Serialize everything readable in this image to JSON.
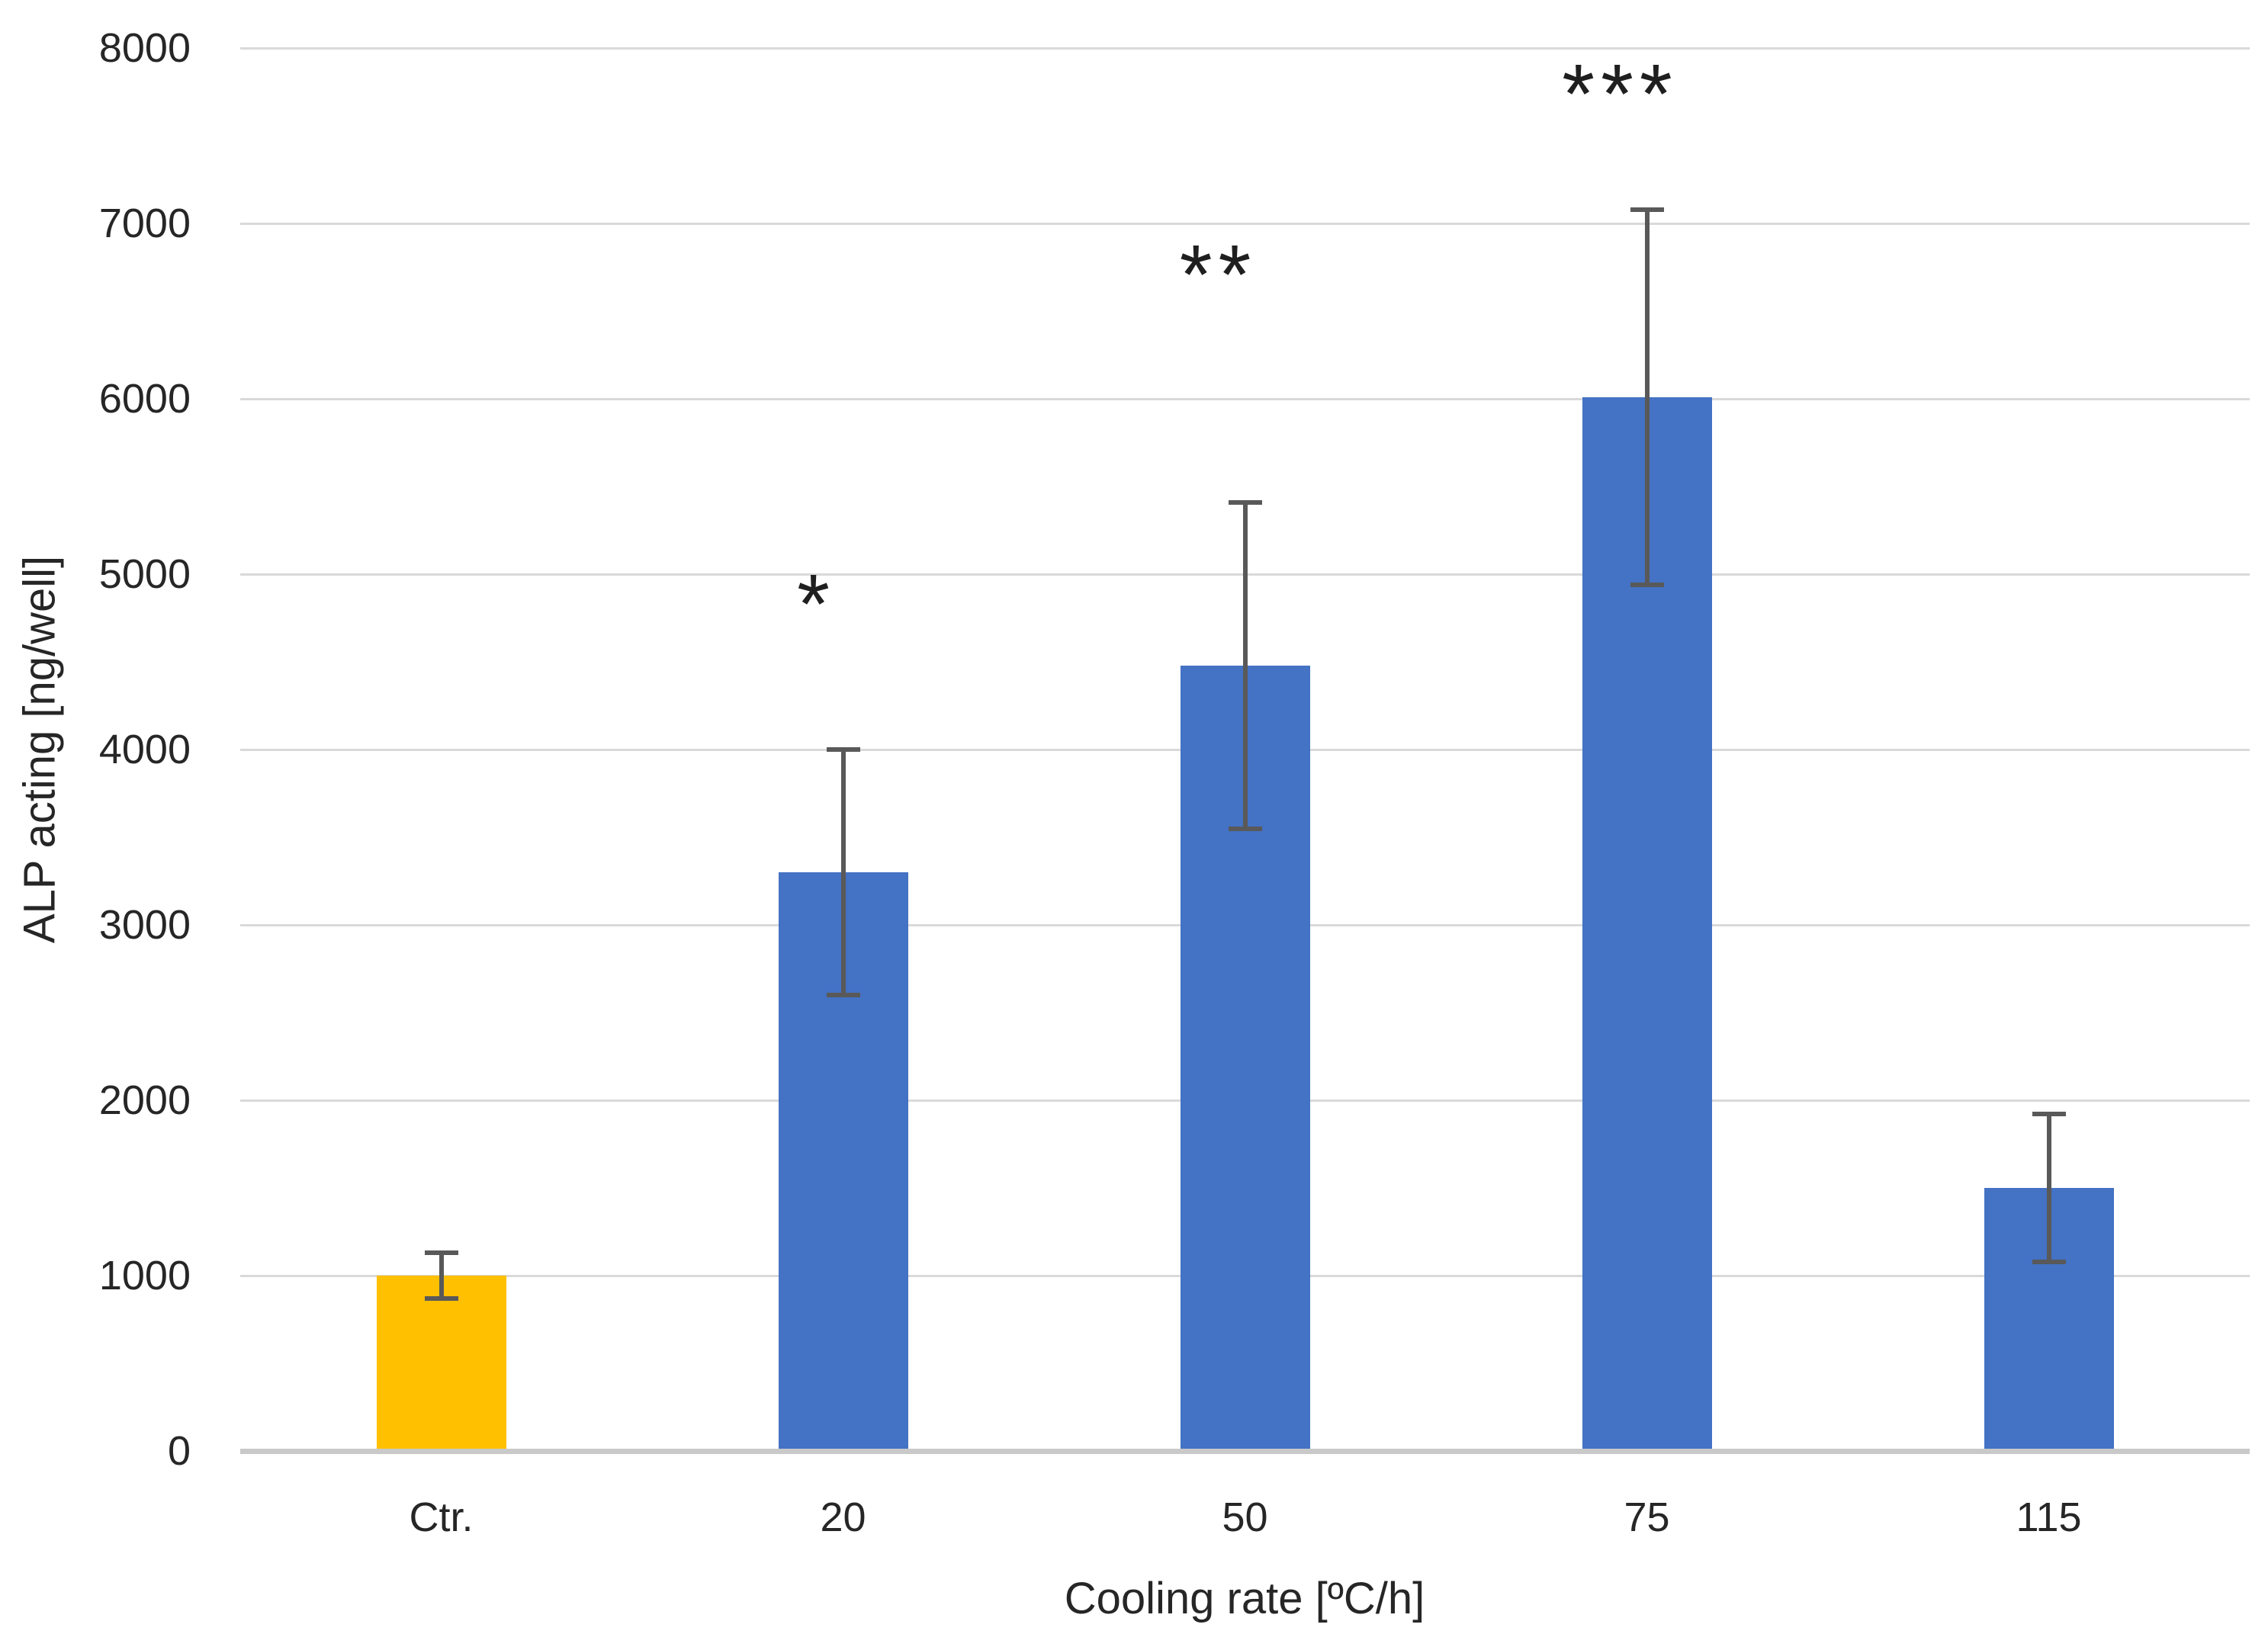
{
  "chart_data": {
    "type": "bar",
    "title": "",
    "xlabel": "Cooling rate [ºC/h]",
    "ylabel": "ALP acting [ng/well]",
    "categories": [
      "Ctr.",
      "20",
      "50",
      "75",
      "115"
    ],
    "values": [
      1000,
      3300,
      4480,
      6010,
      1500
    ],
    "error_bars": [
      130,
      700,
      930,
      1070,
      420
    ],
    "significance": [
      "",
      "*",
      "**",
      "***",
      ""
    ],
    "significance_y": [
      null,
      4900,
      6780,
      7810,
      null
    ],
    "bar_colors": [
      "#FFC000",
      "#4472C4",
      "#4472C4",
      "#4472C4",
      "#4472C4"
    ],
    "ylim": [
      0,
      8000
    ],
    "yticks": [
      0,
      1000,
      2000,
      3000,
      4000,
      5000,
      6000,
      7000,
      8000
    ],
    "grid": true,
    "legend": false,
    "colors": {
      "gridline": "#D9D9D9",
      "axis_line": "#C9C9C9",
      "error_bar": "#595959",
      "text": "#262626"
    }
  }
}
